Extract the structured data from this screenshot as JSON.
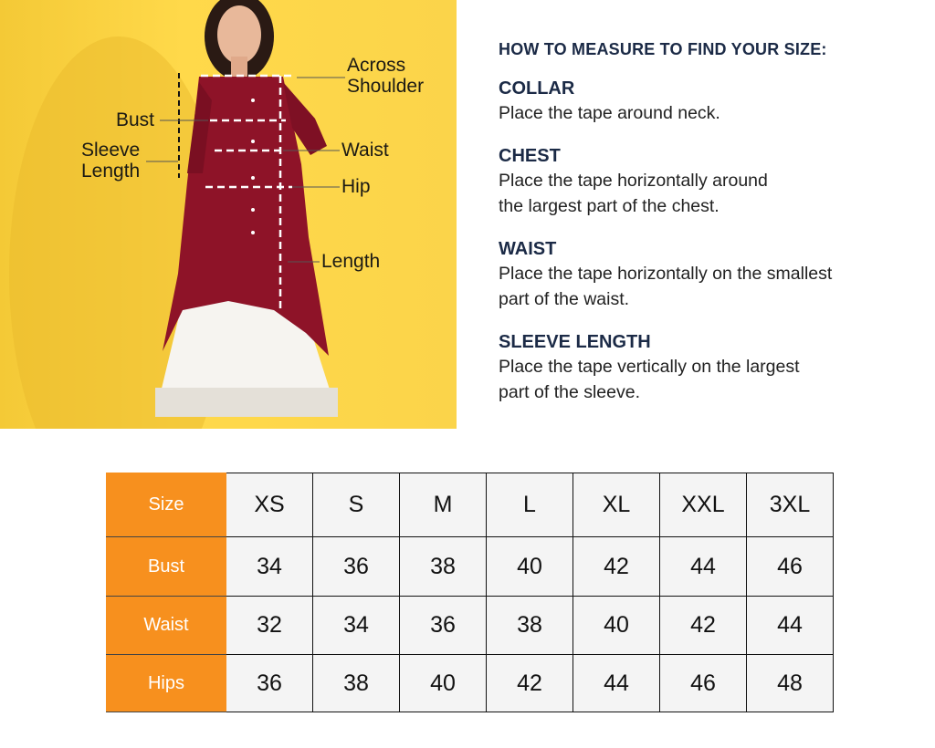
{
  "figure": {
    "background_color": "#fbd44a",
    "garment_color": "#8e1328",
    "labels": {
      "across_shoulder": "Across\nShoulder",
      "bust": "Bust",
      "sleeve_length": "Sleeve\nLength",
      "waist": "Waist",
      "hip": "Hip",
      "length": "Length"
    }
  },
  "guide": {
    "title": "HOW TO MEASURE TO FIND YOUR SIZE:",
    "sections": [
      {
        "heading": "COLLAR",
        "text": "Place the tape around neck."
      },
      {
        "heading": "CHEST",
        "text": "Place the tape horizontally around\nthe largest part of the chest."
      },
      {
        "heading": "WAIST",
        "text": "Place the tape horizontally on the smallest\npart of the waist."
      },
      {
        "heading": "SLEEVE LENGTH",
        "text": "Place the tape vertically on the largest\npart of the sleeve."
      }
    ]
  },
  "size_table": {
    "header_color": "#f7901e",
    "rows": [
      {
        "label": "Size",
        "values": [
          "XS",
          "S",
          "M",
          "L",
          "XL",
          "XXL",
          "3XL"
        ]
      },
      {
        "label": "Bust",
        "values": [
          "34",
          "36",
          "38",
          "40",
          "42",
          "44",
          "46"
        ]
      },
      {
        "label": "Waist",
        "values": [
          "32",
          "34",
          "36",
          "38",
          "40",
          "42",
          "44"
        ]
      },
      {
        "label": "Hips",
        "values": [
          "36",
          "38",
          "40",
          "42",
          "44",
          "46",
          "48"
        ]
      }
    ]
  }
}
